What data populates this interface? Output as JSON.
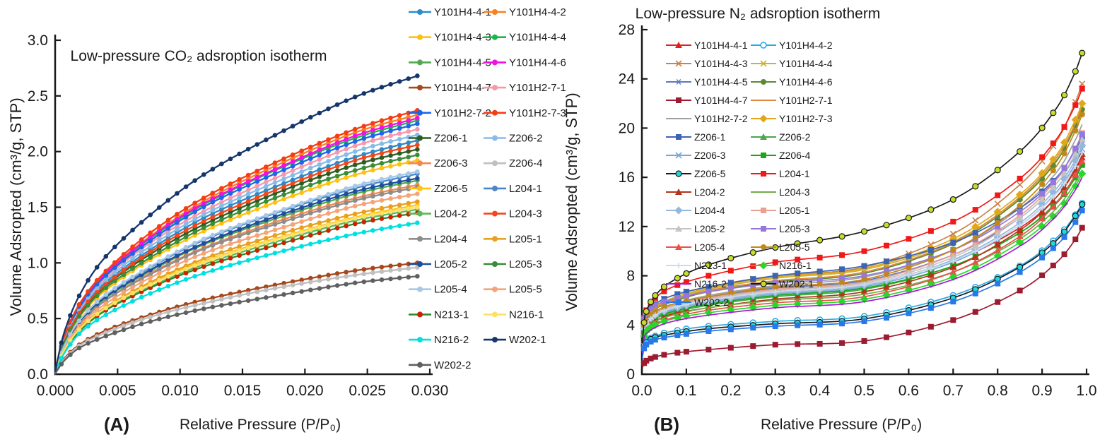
{
  "figure": {
    "background": "#ffffff",
    "text_color": "#1a1a1a"
  },
  "panel_a": {
    "panel_label": "(A)",
    "title": "Low-pressure CO₂ adsroption isotherm",
    "xlabel": "Relative Pressure (P/P₀)",
    "ylabel": "Volume Adsropted (cm³/g, STP)"
  },
  "panel_b": {
    "panel_label": "(B)",
    "title": "Low-pressure N₂ adsroption isotherm",
    "xlabel": "Relative Pressure (P/P₀)",
    "ylabel": "Volume Adsropted (cm³/g, STP)"
  },
  "chart_data": [
    {
      "id": "A",
      "type": "line",
      "title": "Low-pressure CO₂ adsroption isotherm",
      "xlabel": "Relative Pressure (P/P₀)",
      "ylabel": "Volume Adsropted (cm³/g, STP)",
      "xlim": [
        0,
        0.03
      ],
      "ylim": [
        0,
        3.0
      ],
      "xticks": [
        0,
        0.005,
        0.01,
        0.015,
        0.02,
        0.025,
        0.03
      ],
      "xtick_labels": [
        "0.000",
        "0.005",
        "0.010",
        "0.015",
        "0.020",
        "0.025",
        "0.030"
      ],
      "yticks": [
        0,
        0.5,
        1.0,
        1.5,
        2.0,
        2.5,
        3.0
      ],
      "ytick_labels": [
        "0.0",
        "0.5",
        "1.0",
        "1.5",
        "2.0",
        "2.5",
        "3.0"
      ],
      "grid": false,
      "legend_position": "right",
      "marker": "circle",
      "x": [
        0,
        0.0002,
        0.0008,
        0.002,
        0.004,
        0.0075,
        0.012,
        0.018,
        0.024,
        0.029
      ]
    },
    {
      "id": "B",
      "type": "line",
      "title": "Low-pressure N₂ adsroption isotherm",
      "xlabel": "Relative Pressure (P/P₀)",
      "ylabel": "Volume Adsropted (cm³/g, STP)",
      "xlim": [
        0,
        1.0
      ],
      "ylim": [
        0,
        28
      ],
      "xticks": [
        0,
        0.1,
        0.2,
        0.3,
        0.4,
        0.5,
        0.6,
        0.7,
        0.8,
        0.9,
        1.0
      ],
      "xtick_labels": [
        "0.0",
        "0.1",
        "0.2",
        "0.3",
        "0.4",
        "0.5",
        "0.6",
        "0.7",
        "0.8",
        "0.9",
        "1.0"
      ],
      "yticks": [
        0,
        4,
        8,
        12,
        16,
        20,
        24,
        28
      ],
      "ytick_labels": [
        "0",
        "4",
        "8",
        "12",
        "16",
        "20",
        "24",
        "28"
      ],
      "grid": false,
      "legend_position": "upper-left-inside",
      "x": [
        0.001,
        0.005,
        0.01,
        0.03,
        0.07,
        0.15,
        0.3,
        0.5,
        0.7,
        0.85,
        0.93,
        0.97,
        0.99
      ]
    }
  ],
  "series": [
    {
      "name": "Y101H4-4-1",
      "a": {
        "color": "#2E8BC8",
        "y": [
          0,
          0.11,
          0.32,
          0.57,
          0.82,
          1.11,
          1.41,
          1.7,
          1.95,
          2.1
        ]
      },
      "b": {
        "color": "#E02020",
        "marker": "tri",
        "y": [
          2.2,
          3.6,
          4.0,
          4.7,
          5.3,
          5.9,
          6.7,
          7.3,
          9.2,
          11.9,
          14.3,
          16.3,
          17.6
        ]
      }
    },
    {
      "name": "Y101H4-4-2",
      "a": {
        "color": "#F98020",
        "y": [
          0,
          0.12,
          0.35,
          0.63,
          0.91,
          1.23,
          1.56,
          1.89,
          2.17,
          2.33
        ]
      },
      "b": {
        "color": "#29ABE2",
        "marker": "circle-open",
        "y": [
          1.4,
          2.4,
          2.7,
          3.1,
          3.5,
          3.9,
          4.3,
          4.7,
          6.4,
          8.8,
          11.0,
          12.7,
          13.9
        ]
      }
    },
    {
      "name": "Y101H4-4-3",
      "a": {
        "color": "#FFC010",
        "y": [
          0,
          0.1,
          0.29,
          0.52,
          0.75,
          1.02,
          1.29,
          1.56,
          1.79,
          1.92
        ]
      },
      "b": {
        "color": "#C8824B",
        "marker": "x",
        "y": [
          2.6,
          4.4,
          4.9,
          5.7,
          6.4,
          7.1,
          8.0,
          8.7,
          11.4,
          15.4,
          18.8,
          21.7,
          23.6
        ]
      }
    },
    {
      "name": "Y101H4-4-4",
      "a": {
        "color": "#18B848",
        "y": [
          0,
          0.11,
          0.34,
          0.62,
          0.89,
          1.21,
          1.53,
          1.85,
          2.12,
          2.28
        ]
      },
      "b": {
        "color": "#C8B43C",
        "marker": "x",
        "y": [
          2.5,
          4.1,
          4.6,
          5.4,
          6.1,
          6.9,
          7.8,
          8.5,
          10.8,
          14.3,
          17.3,
          19.7,
          21.4
        ]
      }
    },
    {
      "name": "Y101H4-4-5",
      "a": {
        "color": "#52A852",
        "y": [
          0,
          0.09,
          0.26,
          0.47,
          0.68,
          0.92,
          1.17,
          1.41,
          1.62,
          1.74
        ]
      },
      "b": {
        "color": "#5C78C0",
        "marker": "star",
        "y": [
          2.3,
          3.8,
          4.3,
          4.9,
          5.5,
          6.2,
          7.0,
          7.6,
          9.7,
          12.7,
          15.4,
          17.5,
          19.0
        ]
      }
    },
    {
      "name": "Y101H4-4-6",
      "a": {
        "color": "#F010E0",
        "y": [
          0,
          0.12,
          0.35,
          0.62,
          0.9,
          1.22,
          1.54,
          1.86,
          2.14,
          2.3
        ]
      },
      "b": {
        "color": "#5A8A32",
        "marker": "circle",
        "y": [
          2.4,
          4.0,
          4.5,
          5.3,
          5.9,
          6.7,
          7.5,
          8.2,
          10.6,
          14.2,
          17.2,
          19.8,
          21.5
        ]
      }
    },
    {
      "name": "Y101H4-4-7",
      "a": {
        "color": "#A6481C",
        "y": [
          0,
          0.05,
          0.15,
          0.27,
          0.39,
          0.53,
          0.67,
          0.81,
          0.93,
          1.0
        ]
      },
      "b": {
        "color": "#9B1B30",
        "marker": "square",
        "y": [
          0.5,
          0.9,
          1.1,
          1.4,
          1.7,
          2.0,
          2.4,
          2.7,
          4.4,
          6.8,
          9.0,
          10.7,
          11.9
        ]
      }
    },
    {
      "name": "Y101H2-7-1",
      "a": {
        "color": "#F698AC",
        "y": [
          0,
          0.11,
          0.33,
          0.59,
          0.86,
          1.17,
          1.47,
          1.78,
          2.05,
          2.2
        ]
      },
      "b": {
        "color": "#E08840",
        "marker": "none",
        "y": [
          2.5,
          4.1,
          4.6,
          5.4,
          6.0,
          6.8,
          7.6,
          8.3,
          10.7,
          14.4,
          17.5,
          20.0,
          21.8
        ]
      }
    },
    {
      "name": "Y101H2-7-2",
      "a": {
        "color": "#1C64E8",
        "y": [
          0,
          0.11,
          0.34,
          0.61,
          0.88,
          1.19,
          1.51,
          1.82,
          2.09,
          2.25
        ]
      },
      "b": {
        "color": "#A0A0A0",
        "marker": "none",
        "y": [
          2.3,
          3.9,
          4.4,
          5.1,
          5.7,
          6.4,
          7.2,
          7.9,
          10.1,
          13.5,
          16.3,
          18.7,
          20.3
        ]
      }
    },
    {
      "name": "Y101H2-7-3",
      "a": {
        "color": "#F53C14",
        "y": [
          0,
          0.12,
          0.36,
          0.64,
          0.92,
          1.26,
          1.59,
          1.92,
          2.2,
          2.37
        ]
      },
      "b": {
        "color": "#E0A818",
        "marker": "diamond",
        "y": [
          2.5,
          4.2,
          4.7,
          5.5,
          6.2,
          7.0,
          7.9,
          8.6,
          11.0,
          14.6,
          17.7,
          20.3,
          22.0
        ]
      }
    },
    {
      "name": "Z206-1",
      "a": {
        "color": "#2E5C20",
        "y": [
          0,
          0.1,
          0.3,
          0.55,
          0.79,
          1.07,
          1.35,
          1.64,
          1.88,
          2.02
        ]
      },
      "b": {
        "color": "#3C64B4",
        "marker": "square",
        "y": [
          2.6,
          4.3,
          4.8,
          5.7,
          6.4,
          7.1,
          8.0,
          8.8,
          10.7,
          13.5,
          15.9,
          17.9,
          19.3
        ]
      }
    },
    {
      "name": "Z206-2",
      "a": {
        "color": "#88BCE8",
        "y": [
          0,
          0.11,
          0.32,
          0.58,
          0.84,
          1.14,
          1.44,
          1.74,
          2.0,
          2.15
        ]
      },
      "b": {
        "color": "#4CA64C",
        "marker": "tri",
        "y": [
          2.0,
          3.4,
          3.8,
          4.5,
          5.0,
          5.6,
          6.3,
          6.9,
          8.8,
          11.5,
          13.9,
          15.9,
          17.2
        ]
      }
    },
    {
      "name": "Z206-3",
      "a": {
        "color": "#F08850",
        "y": [
          0,
          0.09,
          0.26,
          0.46,
          0.66,
          0.9,
          1.14,
          1.38,
          1.58,
          1.7
        ]
      },
      "b": {
        "color": "#74A8DC",
        "marker": "x",
        "y": [
          2.2,
          3.6,
          4.0,
          4.7,
          5.2,
          5.8,
          6.5,
          7.1,
          9.1,
          12.1,
          14.7,
          16.8,
          18.3
        ]
      }
    },
    {
      "name": "Z206-4",
      "a": {
        "color": "#C0C0C0",
        "y": [
          0,
          0.05,
          0.14,
          0.26,
          0.37,
          0.51,
          0.64,
          0.78,
          0.89,
          0.96
        ]
      },
      "b": {
        "color": "#18A818",
        "marker": "square",
        "y": [
          2.1,
          3.5,
          3.9,
          4.6,
          5.1,
          5.7,
          6.4,
          7.0,
          8.8,
          11.5,
          13.8,
          15.7,
          17.0
        ]
      }
    },
    {
      "name": "Z206-5",
      "a": {
        "color": "#FFC413",
        "y": [
          0,
          0.08,
          0.23,
          0.41,
          0.59,
          0.81,
          1.02,
          1.23,
          1.41,
          1.52
        ]
      },
      "b": {
        "color": "#1A1A1A",
        "marker": "circle",
        "marker_color": "#20D8D8",
        "y": [
          1.4,
          2.3,
          2.6,
          3.0,
          3.3,
          3.7,
          4.1,
          4.5,
          6.2,
          8.7,
          10.8,
          12.6,
          13.8
        ]
      }
    },
    {
      "name": "L204-1",
      "a": {
        "color": "#4A86C8",
        "y": [
          0,
          0.09,
          0.27,
          0.49,
          0.7,
          0.95,
          1.21,
          1.46,
          1.67,
          1.8
        ]
      },
      "b": {
        "color": "#F01818",
        "marker": "square",
        "y": [
          2.8,
          4.6,
          5.2,
          6.2,
          7.1,
          8.0,
          9.1,
          10.0,
          12.4,
          15.9,
          19.0,
          21.5,
          23.2
        ]
      }
    },
    {
      "name": "L204-2",
      "a": {
        "color": "#5CB85C",
        "y": [
          0,
          0.07,
          0.22,
          0.4,
          0.58,
          0.78,
          0.99,
          1.2,
          1.38,
          1.48
        ]
      },
      "b": {
        "color": "#B43418",
        "marker": "tri",
        "y": [
          2.0,
          3.3,
          3.7,
          4.3,
          4.9,
          5.4,
          6.1,
          6.7,
          8.7,
          11.7,
          14.3,
          16.4,
          17.9
        ]
      }
    },
    {
      "name": "L204-3",
      "a": {
        "color": "#F1471D",
        "y": [
          0,
          0.1,
          0.31,
          0.56,
          0.8,
          1.09,
          1.38,
          1.67,
          1.92,
          2.06
        ]
      },
      "b": {
        "color": "#70AD47",
        "marker": "none",
        "y": [
          2.0,
          3.4,
          3.8,
          4.3,
          4.8,
          5.4,
          6.0,
          6.5,
          8.3,
          11.0,
          13.4,
          15.3,
          16.6
        ]
      }
    },
    {
      "name": "L204-4",
      "a": {
        "color": "#8C8C8C",
        "y": [
          0,
          0.08,
          0.25,
          0.45,
          0.66,
          0.89,
          1.13,
          1.36,
          1.56,
          1.68
        ]
      },
      "b": {
        "color": "#94B8DC",
        "marker": "diamond",
        "y": [
          2.2,
          3.7,
          4.1,
          4.8,
          5.3,
          5.9,
          6.6,
          7.2,
          9.3,
          12.3,
          15.0,
          17.1,
          18.6
        ]
      }
    },
    {
      "name": "L205-1",
      "a": {
        "color": "#E8A020",
        "y": [
          0,
          0.08,
          0.23,
          0.42,
          0.6,
          0.82,
          1.04,
          1.26,
          1.44,
          1.55
        ]
      },
      "b": {
        "color": "#E8A090",
        "marker": "square",
        "y": [
          2.3,
          3.9,
          4.3,
          5.0,
          5.6,
          6.2,
          6.9,
          7.5,
          9.7,
          12.9,
          15.7,
          18.0,
          19.6
        ]
      }
    },
    {
      "name": "L205-2",
      "a": {
        "color": "#1F4E9C",
        "y": [
          0,
          0.09,
          0.26,
          0.48,
          0.69,
          0.93,
          1.18,
          1.43,
          1.64,
          1.76
        ]
      },
      "b": {
        "color": "#C4C4C4",
        "marker": "tri",
        "y": [
          2.3,
          3.8,
          4.2,
          4.9,
          5.5,
          6.1,
          6.8,
          7.4,
          9.5,
          12.7,
          15.4,
          17.6,
          19.1
        ]
      }
    },
    {
      "name": "L205-3",
      "a": {
        "color": "#3A8C3A",
        "y": [
          0,
          0.1,
          0.3,
          0.53,
          0.77,
          1.04,
          1.32,
          1.6,
          1.83,
          1.97
        ]
      },
      "b": {
        "color": "#9678DC",
        "marker": "square",
        "y": [
          2.7,
          4.5,
          4.9,
          5.6,
          6.1,
          6.7,
          7.4,
          8.0,
          10.1,
          13.2,
          15.8,
          18.0,
          19.5
        ]
      }
    },
    {
      "name": "L205-4",
      "a": {
        "color": "#A8C8E8",
        "y": [
          0,
          0.09,
          0.27,
          0.49,
          0.71,
          0.96,
          1.22,
          1.47,
          1.69,
          1.82
        ]
      },
      "b": {
        "color": "#E85048",
        "marker": "tri",
        "y": [
          1.9,
          3.2,
          3.6,
          4.1,
          4.6,
          5.2,
          5.8,
          6.3,
          8.3,
          11.2,
          13.8,
          15.9,
          17.3
        ]
      }
    },
    {
      "name": "L205-5",
      "a": {
        "color": "#F4A478",
        "y": [
          0,
          0.08,
          0.24,
          0.44,
          0.63,
          0.86,
          1.09,
          1.31,
          1.51,
          1.62
        ]
      },
      "b": {
        "color": "#C08818",
        "marker": "circle",
        "y": [
          2.4,
          4.0,
          4.4,
          5.1,
          5.7,
          6.3,
          7.1,
          7.7,
          10.1,
          13.7,
          16.8,
          19.4,
          21.1
        ]
      }
    },
    {
      "name": "N213-1",
      "a": {
        "color": "#2E8B2E",
        "marker_color": "#CC2200",
        "y": [
          0,
          0.07,
          0.22,
          0.39,
          0.57,
          0.77,
          0.97,
          1.17,
          1.35,
          1.45
        ]
      },
      "b": {
        "color": "#C8DCF0",
        "marker": "plus",
        "y": [
          2.2,
          3.7,
          4.1,
          4.8,
          5.4,
          6.0,
          6.7,
          7.3,
          9.2,
          12.1,
          14.6,
          16.6,
          18.0
        ]
      }
    },
    {
      "name": "N216-1",
      "a": {
        "color": "#FFE066",
        "y": [
          0,
          0.08,
          0.23,
          0.41,
          0.59,
          0.8,
          1.01,
          1.22,
          1.4,
          1.5
        ]
      },
      "b": {
        "color": "#28D828",
        "marker": "diamond",
        "y": [
          1.9,
          3.1,
          3.5,
          4.0,
          4.5,
          5.0,
          5.6,
          6.1,
          7.9,
          10.7,
          13.0,
          15.0,
          16.3
        ]
      }
    },
    {
      "name": "N216-2",
      "a": {
        "color": "#00E0E0",
        "y": [
          0,
          0.07,
          0.2,
          0.37,
          0.53,
          0.72,
          0.91,
          1.1,
          1.26,
          1.36
        ]
      },
      "b": {
        "color": "#A818D8",
        "marker": "none",
        "y": [
          1.7,
          2.9,
          3.3,
          3.8,
          4.3,
          4.8,
          5.4,
          5.9,
          7.7,
          10.4,
          12.8,
          14.7,
          16.0
        ]
      }
    },
    {
      "name": "W202-1",
      "a": {
        "color": "#15356B",
        "y": [
          0,
          0.13,
          0.4,
          0.72,
          1.05,
          1.42,
          1.8,
          2.17,
          2.49,
          2.68
        ]
      },
      "b": {
        "color": "#1A1A1A",
        "marker": "circle",
        "marker_color": "#C8DC28",
        "y": [
          2.5,
          4.2,
          5.1,
          6.4,
          7.6,
          8.9,
          10.3,
          11.6,
          14.2,
          18.1,
          21.5,
          24.2,
          26.1
        ]
      }
    },
    {
      "name": "W202-2",
      "a": {
        "color": "#606060",
        "y": [
          0,
          0.04,
          0.13,
          0.24,
          0.34,
          0.47,
          0.59,
          0.71,
          0.82,
          0.88
        ]
      },
      "b": {
        "color": "#2878E8",
        "marker": "square",
        "y": [
          1.3,
          2.1,
          2.4,
          2.8,
          3.1,
          3.5,
          3.9,
          4.3,
          5.9,
          8.3,
          10.4,
          12.1,
          13.3
        ]
      }
    }
  ]
}
